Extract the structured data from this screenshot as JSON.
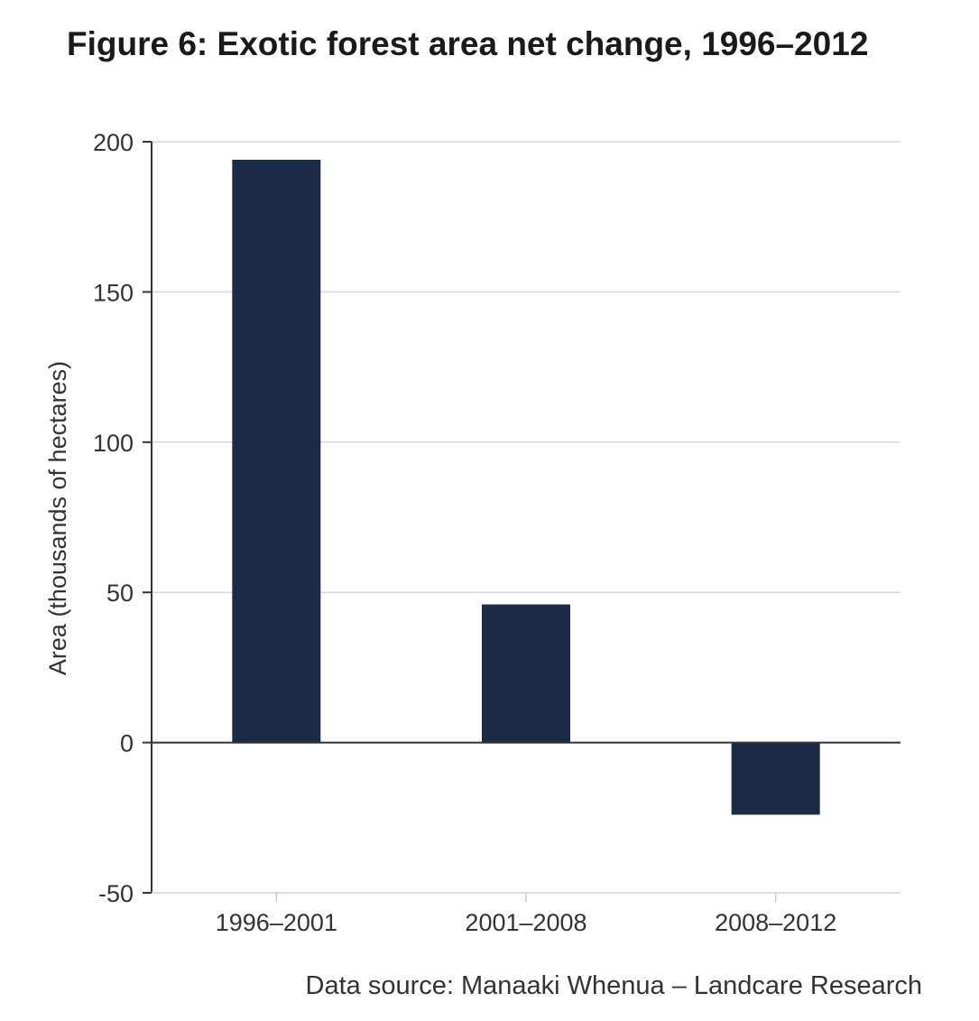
{
  "chart_data": {
    "type": "bar",
    "title": "Figure 6: Exotic forest area net change, 1996–2012",
    "xlabel": "",
    "ylabel": "Area (thousands of hectares)",
    "categories": [
      "1996–2001",
      "2001–2008",
      "2008–2012"
    ],
    "values": [
      194,
      46,
      -24
    ],
    "ylim": [
      -50,
      200
    ],
    "yticks": [
      200,
      150,
      100,
      50,
      0,
      -50
    ],
    "grid": "horizontal",
    "bar_color": "#1b2b45",
    "source": "Data source: Manaaki Whenua – Landcare Research"
  }
}
